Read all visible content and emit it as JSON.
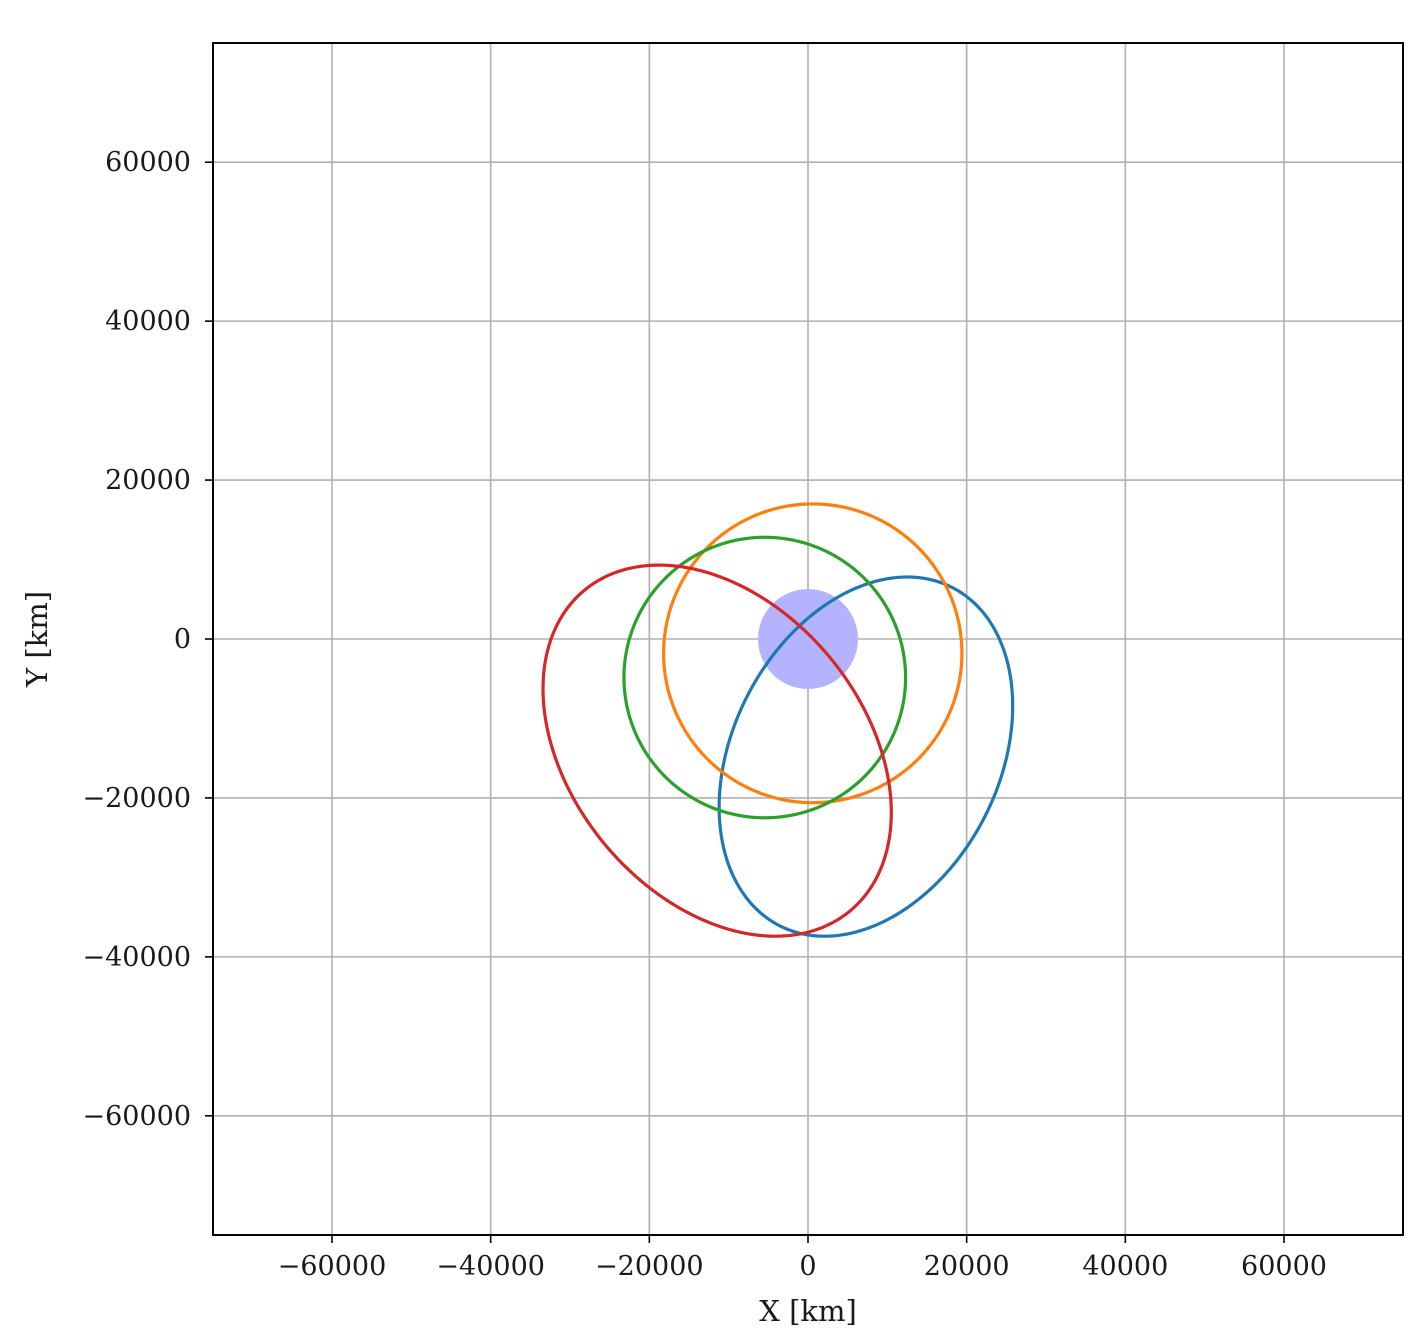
{
  "chart_data": {
    "type": "line",
    "title": "",
    "xlabel": "X [km]",
    "ylabel": "Y [km]",
    "xlim": [
      -75000,
      75000
    ],
    "ylim": [
      -75000,
      75000
    ],
    "grid": true,
    "legend": "none",
    "x_ticks": [
      -60000,
      -40000,
      -20000,
      0,
      20000,
      40000,
      60000
    ],
    "y_ticks": [
      -60000,
      -40000,
      -20000,
      0,
      20000,
      40000,
      60000
    ],
    "central_body": {
      "center": [
        0,
        0
      ],
      "radius": 6300,
      "color": "#b3b3ff"
    },
    "series": [
      {
        "color": "#1f77b4",
        "shape": "ellipse",
        "center": [
          6400,
          -14800
        ],
        "semi_axes": [
          17600,
          24900
        ],
        "rotation_deg": -28,
        "extents": {
          "x": [
            -11200,
            25800
          ],
          "y": [
            -37400,
            7800
          ]
        }
      },
      {
        "color": "#ff7f0e",
        "shape": "ellipse",
        "center": [
          600,
          -1800
        ],
        "semi_axes": [
          18800,
          18800
        ],
        "rotation_deg": 0,
        "extents": {
          "x": [
            -18200,
            19400
          ],
          "y": [
            -20600,
            17000
          ]
        }
      },
      {
        "color": "#2ca02c",
        "shape": "ellipse",
        "center": [
          -5500,
          -4800
        ],
        "semi_axes": [
          17700,
          17700
        ],
        "rotation_deg": 0,
        "extents": {
          "x": [
            -23200,
            12300
          ],
          "y": [
            -22500,
            12800
          ]
        }
      },
      {
        "color": "#d62728",
        "shape": "ellipse",
        "center": [
          -12400,
          -14100
        ],
        "semi_axes": [
          17600,
          24900
        ],
        "rotation_deg": 45,
        "extents": {
          "x": [
            -33400,
            10500
          ],
          "y": [
            -37400,
            9300
          ]
        }
      }
    ]
  }
}
